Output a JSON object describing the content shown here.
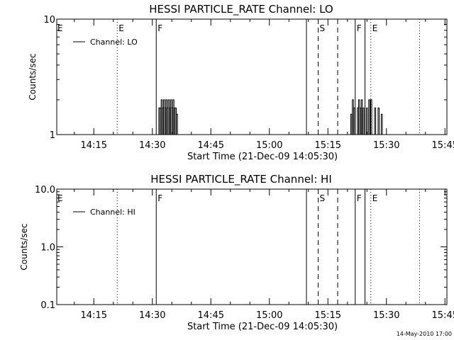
{
  "timestamp": "14-May-2010 17:00",
  "chart_data": [
    {
      "type": "line",
      "title": "HESSI PARTICLE_RATE Channel: LO",
      "xlabel": "Start Time (21-Dec-09 14:05:30)",
      "ylabel": "Counts/sec",
      "x_unit": "minutes since 14:05:30",
      "xlim": [
        0,
        100
      ],
      "x_ticks": [
        {
          "value": 9.5,
          "label": "14:15"
        },
        {
          "value": 24.5,
          "label": "14:30"
        },
        {
          "value": 39.5,
          "label": "14:45"
        },
        {
          "value": 54.5,
          "label": "15:00"
        },
        {
          "value": 69.5,
          "label": "15:15"
        },
        {
          "value": 84.5,
          "label": "15:30"
        },
        {
          "value": 99.5,
          "label": "15:45"
        }
      ],
      "y_scale": "log",
      "ylim": [
        1,
        10
      ],
      "y_ticks": [
        {
          "value": 1,
          "label": "1"
        },
        {
          "value": 10,
          "label": "10"
        }
      ],
      "legend": {
        "label": "Channel: LO",
        "position": "top-left"
      },
      "series": [
        {
          "name": "Channel: LO",
          "spikes": [
            {
              "x": 26.3,
              "y": 1.7
            },
            {
              "x": 26.6,
              "y": 1.7
            },
            {
              "x": 26.9,
              "y": 2.0
            },
            {
              "x": 27.2,
              "y": 1.7
            },
            {
              "x": 27.5,
              "y": 2.0
            },
            {
              "x": 27.8,
              "y": 1.7
            },
            {
              "x": 28.1,
              "y": 2.0
            },
            {
              "x": 28.4,
              "y": 1.7
            },
            {
              "x": 28.7,
              "y": 2.0
            },
            {
              "x": 29.0,
              "y": 1.7
            },
            {
              "x": 29.3,
              "y": 2.0
            },
            {
              "x": 29.6,
              "y": 1.7
            },
            {
              "x": 29.9,
              "y": 2.0
            },
            {
              "x": 30.2,
              "y": 1.7
            },
            {
              "x": 30.5,
              "y": 1.7
            },
            {
              "x": 30.8,
              "y": 1.5
            },
            {
              "x": 75.5,
              "y": 1.5
            },
            {
              "x": 75.9,
              "y": 2.0
            },
            {
              "x": 76.3,
              "y": 1.7
            },
            {
              "x": 77.2,
              "y": 1.7
            },
            {
              "x": 77.5,
              "y": 2.0
            },
            {
              "x": 77.8,
              "y": 1.7
            },
            {
              "x": 78.2,
              "y": 2.0
            },
            {
              "x": 78.6,
              "y": 1.7
            },
            {
              "x": 79.5,
              "y": 1.7
            },
            {
              "x": 80.1,
              "y": 2.0
            },
            {
              "x": 80.6,
              "y": 2.0
            },
            {
              "x": 81.6,
              "y": 1.7
            },
            {
              "x": 82.5,
              "y": 1.7
            },
            {
              "x": 83.3,
              "y": 1.5
            }
          ]
        }
      ],
      "vertical_markers": [
        {
          "x": 15.5,
          "style": "dotted",
          "label": "E"
        },
        {
          "x": 25.5,
          "style": "solid",
          "label": "F"
        },
        {
          "x": 64.0,
          "style": "solid",
          "label": ""
        },
        {
          "x": 67.0,
          "style": "dashed",
          "label": "S"
        },
        {
          "x": 72.0,
          "style": "dashed",
          "label": ""
        },
        {
          "x": 76.5,
          "style": "solid",
          "label": "F"
        },
        {
          "x": 79.0,
          "style": "solid",
          "label": ""
        },
        {
          "x": 80.5,
          "style": "dotted",
          "label": "E"
        },
        {
          "x": 93.0,
          "style": "dotted",
          "label": ""
        }
      ],
      "left_mark": "E"
    },
    {
      "type": "line",
      "title": "HESSI PARTICLE_RATE Channel: HI",
      "xlabel": "Start Time (21-Dec-09 14:05:30)",
      "ylabel": "Counts/sec",
      "x_unit": "minutes since 14:05:30",
      "xlim": [
        0,
        100
      ],
      "x_ticks": [
        {
          "value": 9.5,
          "label": "14:15"
        },
        {
          "value": 24.5,
          "label": "14:30"
        },
        {
          "value": 39.5,
          "label": "14:45"
        },
        {
          "value": 54.5,
          "label": "15:00"
        },
        {
          "value": 69.5,
          "label": "15:15"
        },
        {
          "value": 84.5,
          "label": "15:30"
        },
        {
          "value": 99.5,
          "label": "15:45"
        }
      ],
      "y_scale": "log",
      "ylim": [
        0.1,
        10
      ],
      "y_ticks": [
        {
          "value": 0.1,
          "label": "0.1"
        },
        {
          "value": 1,
          "label": "1.0"
        },
        {
          "value": 10,
          "label": "10.0"
        }
      ],
      "legend": {
        "label": "Channel: HI",
        "position": "top-left"
      },
      "series": [
        {
          "name": "Channel: HI",
          "spikes": []
        }
      ],
      "vertical_markers": [
        {
          "x": 15.5,
          "style": "dotted",
          "label": ""
        },
        {
          "x": 25.5,
          "style": "solid",
          "label": "F"
        },
        {
          "x": 64.0,
          "style": "solid",
          "label": ""
        },
        {
          "x": 67.0,
          "style": "dashed",
          "label": "S"
        },
        {
          "x": 72.0,
          "style": "dashed",
          "label": ""
        },
        {
          "x": 76.5,
          "style": "solid",
          "label": "F"
        },
        {
          "x": 79.0,
          "style": "solid",
          "label": ""
        },
        {
          "x": 80.5,
          "style": "dotted",
          "label": "E"
        },
        {
          "x": 93.0,
          "style": "dotted",
          "label": ""
        }
      ],
      "left_mark": "E"
    }
  ]
}
